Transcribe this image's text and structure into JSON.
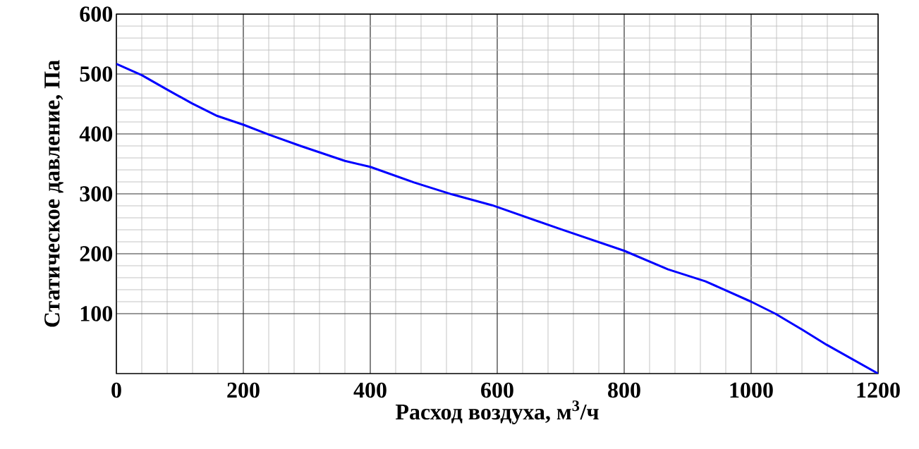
{
  "chart_data": {
    "type": "line",
    "xlabel": "Расход воздуха, м$^{3}$/ч",
    "ylabel": "Статическое давление, Па",
    "x": [
      0,
      40,
      80,
      119,
      159,
      201,
      240,
      290,
      360,
      400,
      469,
      529,
      592,
      700,
      800,
      869,
      928,
      1000,
      1038,
      1081,
      1119,
      1200
    ],
    "series": [
      {
        "color": "#0000ff",
        "values": [
          517,
          498,
          474,
          451,
          430,
          415,
          399,
          380,
          355,
          345,
          319,
          299,
          281,
          241,
          205,
          174,
          154,
          120,
          100,
          73,
          48,
          0
        ]
      }
    ],
    "xlim": [
      0,
      1200
    ],
    "ylim": [
      0,
      600
    ],
    "xticks": [
      0,
      200,
      400,
      600,
      800,
      1000,
      1200
    ],
    "yticks": [
      100,
      200,
      300,
      400,
      500,
      600
    ],
    "grid": true,
    "marker": "none",
    "line_style": "solid"
  }
}
